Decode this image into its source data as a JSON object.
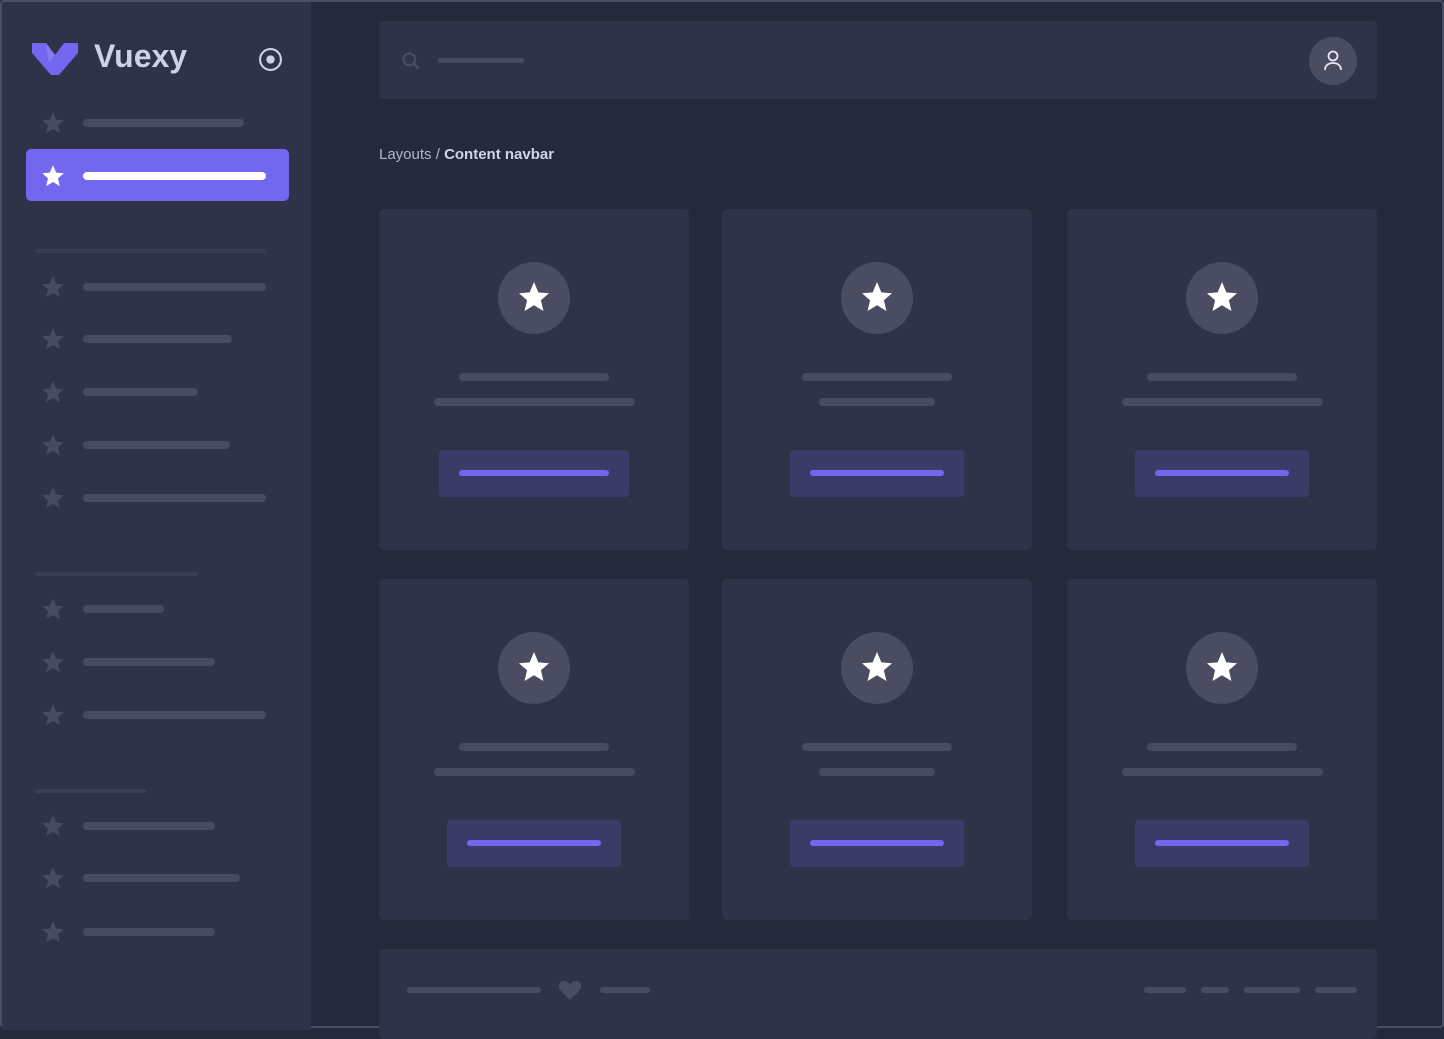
{
  "brand": {
    "name": "Vuexy",
    "accent": "#7367f0"
  },
  "breadcrumb": {
    "parent": "Layouts",
    "separator": " / ",
    "current": "Content navbar"
  },
  "sidebar": {
    "active_index": 1,
    "icon": "star-icon"
  },
  "cards": {
    "count": 6,
    "icon": "star-icon"
  },
  "footer": {
    "icon": "heart-icon"
  }
}
